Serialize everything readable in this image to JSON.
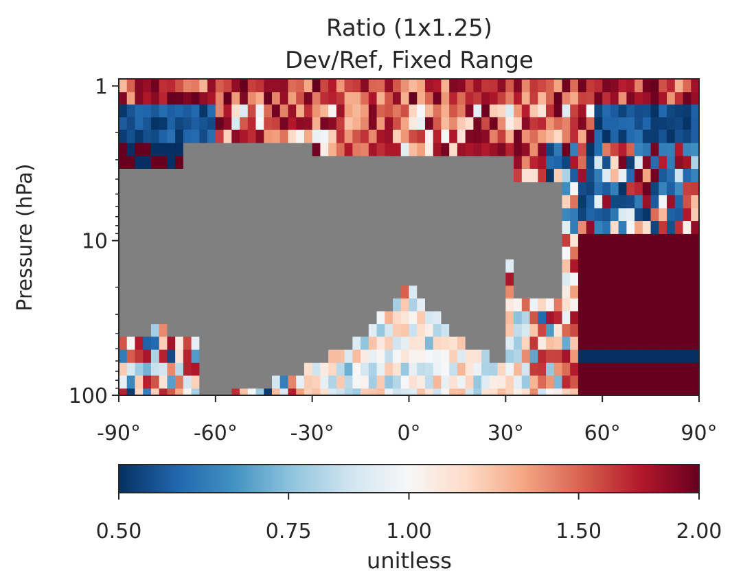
{
  "chart_data": {
    "type": "heatmap",
    "title": "Ratio (1x1.25)",
    "subtitle": "Dev/Ref, Fixed Range",
    "ylabel": "Pressure (hPa)",
    "xlabel": "",
    "x_ticks": [
      {
        "value": -90,
        "label": "-90°"
      },
      {
        "value": -60,
        "label": "-60°"
      },
      {
        "value": -30,
        "label": "-30°"
      },
      {
        "value": 0,
        "label": "0°"
      },
      {
        "value": 30,
        "label": "30°"
      },
      {
        "value": 60,
        "label": "60°"
      },
      {
        "value": 90,
        "label": "90°"
      }
    ],
    "xlim": [
      -90,
      90
    ],
    "y_scale": "log",
    "y_inverted": true,
    "ylim": [
      100,
      0.9
    ],
    "y_ticks": [
      {
        "value": 1,
        "label": "1"
      },
      {
        "value": 10,
        "label": "10"
      },
      {
        "value": 100,
        "label": "100"
      }
    ],
    "missing_color": "#808080",
    "colormap": "RdBu_r",
    "colorbar": {
      "label": "unitless",
      "range": [
        0.5,
        2.0
      ],
      "ticks": [
        {
          "value": 0.5,
          "label": "0.50"
        },
        {
          "value": 0.75,
          "label": "0.75"
        },
        {
          "value": 1.0,
          "label": "1.00"
        },
        {
          "value": 1.5,
          "label": "1.50"
        },
        {
          "value": 2.0,
          "label": "2.00"
        }
      ],
      "stops": [
        "#053061",
        "#2166ac",
        "#4393c3",
        "#92c5de",
        "#d1e5f0",
        "#f7f7f7",
        "#fddbc7",
        "#f4a582",
        "#d6604d",
        "#b2182b",
        "#67001f"
      ]
    },
    "levels_hPa": [
      1.0,
      1.2,
      1.45,
      1.75,
      2.1,
      2.6,
      3.1,
      3.8,
      4.6,
      5.6,
      6.8,
      8.2,
      10,
      12,
      14.6,
      17.8,
      21.5,
      26,
      31.5,
      38,
      46,
      56,
      68,
      82,
      100
    ],
    "lat_start": -90,
    "lat_step": 2.5,
    "lat_count": 72,
    "fill_value_over_missing": 0.5,
    "notes_on_regions": {
      "low_ratio_regions": "blue (≈0.5) at high latitudes near 1–3 hPa and 60–100 hPa midlatitudes",
      "high_ratio_regions": "dark red (≈2.0) near 1 hPa across most latitudes and poleward of 50°N below 10 hPa"
    }
  }
}
